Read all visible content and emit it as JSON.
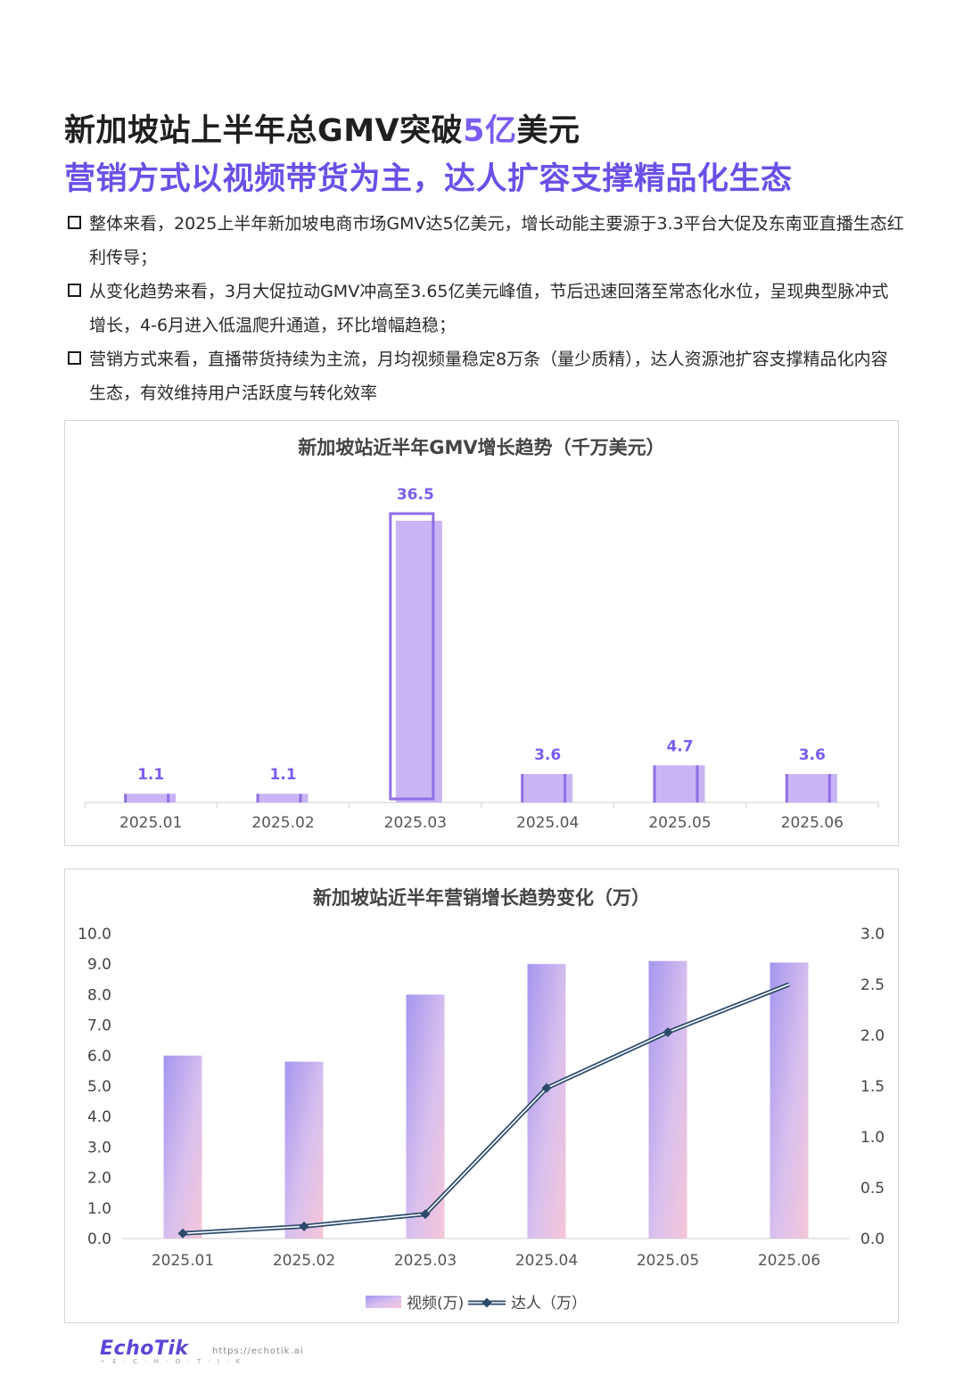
{
  "header": {
    "line1_pre": "新加坡站上半年总GMV突破",
    "line1_accent": "5亿",
    "line1_post": "美元",
    "line2": "营销方式以视频带货为主，达人扩容支撑精品化生态"
  },
  "bullets": [
    "整体来看，2025上半年新加坡电商市场GMV达5亿美元，增长动能主要源于3.3平台大促及东南亚直播生态红利传导；",
    "从变化趋势来看，3月大促拉动GMV冲高至3.65亿美元峰值，节后迅速回落至常态化水位，呈现典型脉冲式增长，4-6月进入低温爬升通道，环比增幅趋稳；",
    "营销方式来看，直播带货持续为主流，月均视频量稳定8万条（量少质精），达人资源池扩容支撑精品化内容生态，有效维持用户活跃度与转化效率"
  ],
  "colors": {
    "accent": "#7c5cf0",
    "bar_fill": "#c9b4f5",
    "bar_stroke": "#8f6fe6",
    "line": "#2c4a6b"
  },
  "chart_data": [
    {
      "type": "bar",
      "title": "新加坡站近半年GMV增长趋势（千万美元）",
      "categories": [
        "2025.01",
        "2025.02",
        "2025.03",
        "2025.04",
        "2025.05",
        "2025.06"
      ],
      "values": [
        1.1,
        1.1,
        36.5,
        3.6,
        4.7,
        3.6
      ],
      "data_labels": [
        "1.1",
        "1.1",
        "36.5",
        "3.6",
        "4.7",
        "3.6"
      ],
      "highlight_index": 2,
      "ylim": [
        0,
        38
      ],
      "grid": false
    },
    {
      "type": "bar",
      "title": "新加坡站近半年营销增长趋势变化（万）",
      "categories": [
        "2025.01",
        "2025.02",
        "2025.03",
        "2025.04",
        "2025.05",
        "2025.06"
      ],
      "series": [
        {
          "name": "视频(万)",
          "type": "bar",
          "axis": "left",
          "values": [
            6.0,
            5.8,
            8.0,
            9.0,
            9.1,
            9.05
          ]
        },
        {
          "name": "达人（万）",
          "type": "line",
          "axis": "right",
          "values": [
            0.05,
            0.12,
            0.24,
            1.48,
            2.03,
            2.5
          ]
        }
      ],
      "ylim_left": [
        0,
        10
      ],
      "yticks_left": [
        "0.0",
        "1.0",
        "2.0",
        "3.0",
        "4.0",
        "5.0",
        "6.0",
        "7.0",
        "8.0",
        "9.0",
        "10.0"
      ],
      "ylim_right": [
        0,
        3
      ],
      "yticks_right": [
        "0.0",
        "0.5",
        "1.0",
        "1.5",
        "2.0",
        "2.5",
        "3.0"
      ],
      "legend_position": "bottom",
      "grid": false
    }
  ],
  "footer": {
    "brand": "EchoTik",
    "brand_sub": "~ E · C · H · O · T · I · K",
    "url": "https://echotik.ai"
  }
}
